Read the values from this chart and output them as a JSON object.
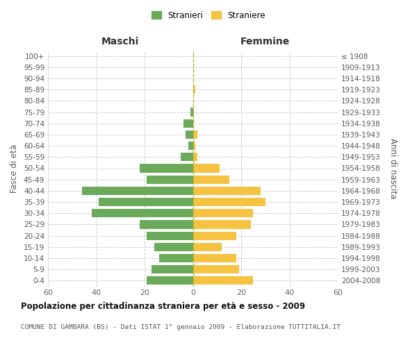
{
  "age_groups": [
    "100+",
    "95-99",
    "90-94",
    "85-89",
    "80-84",
    "75-79",
    "70-74",
    "65-69",
    "60-64",
    "55-59",
    "50-54",
    "45-49",
    "40-44",
    "35-39",
    "30-34",
    "25-29",
    "20-24",
    "15-19",
    "10-14",
    "5-9",
    "0-4"
  ],
  "birth_years": [
    "≤ 1908",
    "1909-1913",
    "1914-1918",
    "1919-1923",
    "1924-1928",
    "1929-1933",
    "1934-1938",
    "1939-1943",
    "1944-1948",
    "1949-1953",
    "1954-1958",
    "1959-1963",
    "1964-1968",
    "1969-1973",
    "1974-1978",
    "1979-1983",
    "1984-1988",
    "1989-1993",
    "1994-1998",
    "1999-2003",
    "2004-2008"
  ],
  "males": [
    0,
    0,
    0,
    0,
    0,
    1,
    4,
    3,
    2,
    5,
    22,
    19,
    46,
    39,
    42,
    22,
    19,
    16,
    14,
    17,
    19
  ],
  "females": [
    0,
    0,
    0,
    1,
    0,
    0,
    0,
    2,
    1,
    2,
    11,
    15,
    28,
    30,
    25,
    24,
    18,
    12,
    18,
    19,
    25
  ],
  "male_color": "#6aaa5a",
  "female_color": "#f5c242",
  "center_line_color": "#b8b820",
  "background_color": "#ffffff",
  "grid_color": "#cccccc",
  "title": "Popolazione per cittadinanza straniera per età e sesso - 2009",
  "subtitle": "COMUNE DI GAMBARA (BS) - Dati ISTAT 1° gennaio 2009 - Elaborazione TUTTITALIA.IT",
  "xlabel_left": "Maschi",
  "xlabel_right": "Femmine",
  "ylabel_left": "Fasce di età",
  "ylabel_right": "Anni di nascita",
  "legend_male": "Stranieri",
  "legend_female": "Straniere",
  "xlim": 60
}
